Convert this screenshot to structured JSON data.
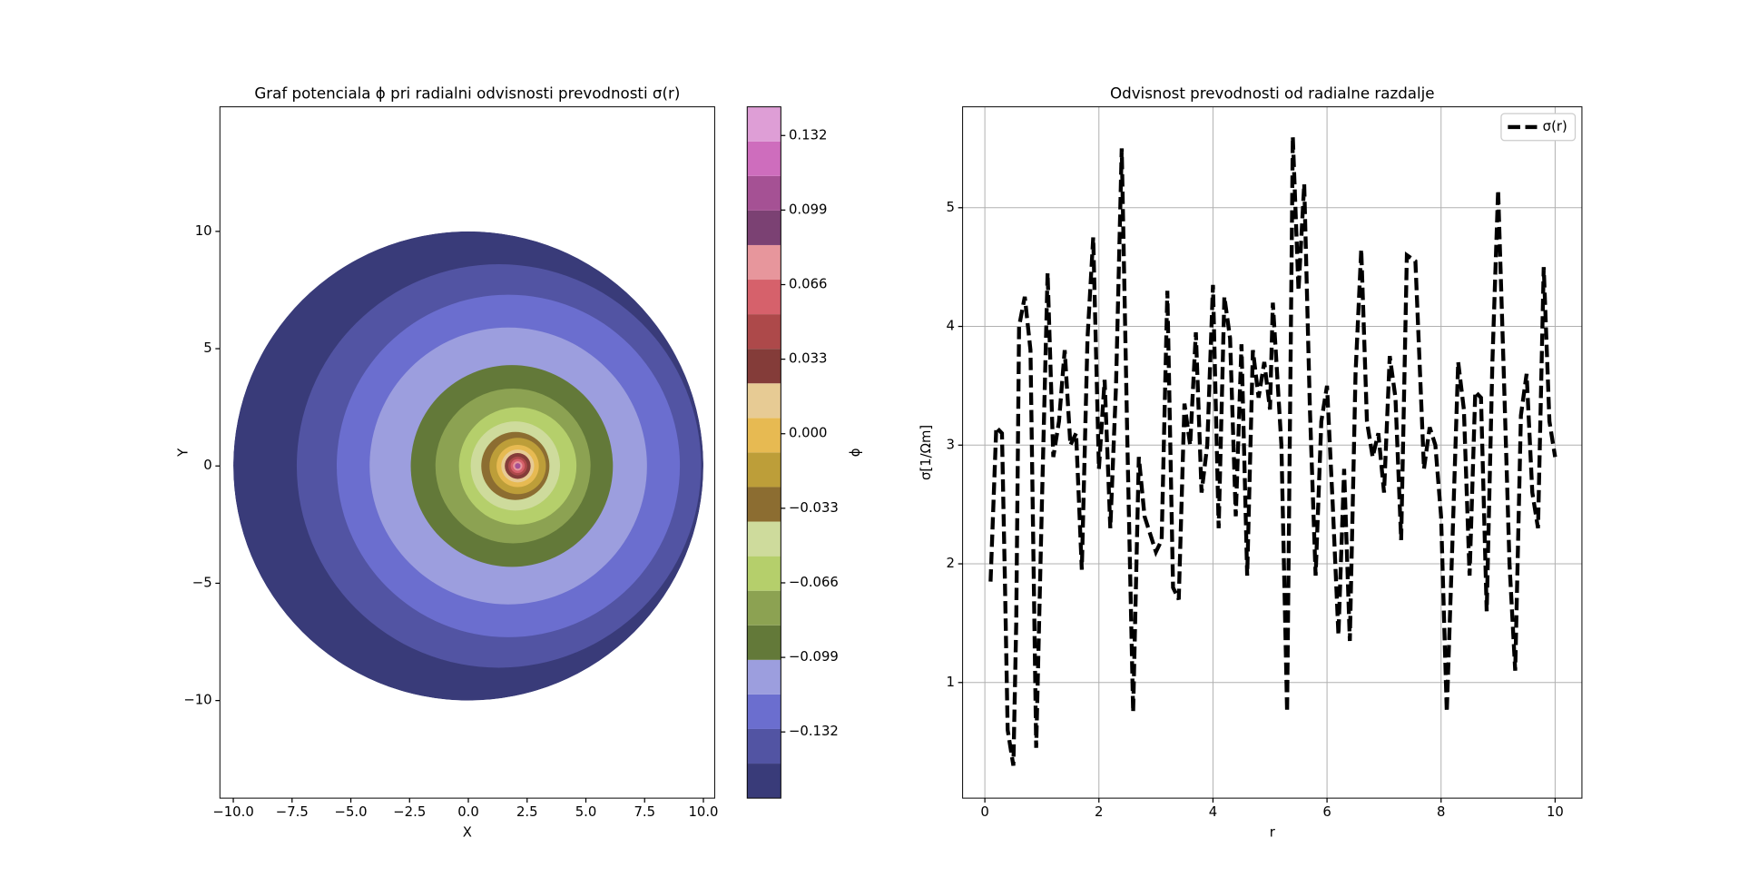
{
  "chart_data": [
    {
      "type": "contour",
      "title": "Graf potenciala ϕ pri radialni odvisnosti prevodnosti σ(r)",
      "x_label": "X",
      "y_label": "Y",
      "colorbar_label": "ϕ",
      "xlim": [
        -10.57,
        10.48
      ],
      "ylim": [
        -14.16,
        15.31
      ],
      "xticks": [
        {
          "value": -10,
          "label": "−10.0"
        },
        {
          "value": -7.5,
          "label": "−7.5"
        },
        {
          "value": -5,
          "label": "−5.0"
        },
        {
          "value": -2.5,
          "label": "−2.5"
        },
        {
          "value": 0,
          "label": "0.0"
        },
        {
          "value": 2.5,
          "label": "2.5"
        },
        {
          "value": 5,
          "label": "5.0"
        },
        {
          "value": 7.5,
          "label": "7.5"
        },
        {
          "value": 10,
          "label": "10.0"
        }
      ],
      "yticks": [
        {
          "value": -10,
          "label": "−10"
        },
        {
          "value": -5,
          "label": "−5"
        },
        0,
        5,
        10
      ],
      "domain_radius": 10,
      "levels": [
        -0.1613,
        -0.146,
        -0.1307,
        -0.1154,
        -0.1001,
        -0.0848,
        -0.0695,
        -0.0542,
        -0.0389,
        -0.0236,
        -0.0083,
        0.007,
        0.0223,
        0.0376,
        0.0529,
        0.0682,
        0.0835,
        0.0988,
        0.1141,
        0.1294,
        0.1447
      ],
      "colors": [
        "#393b79",
        "#5254a3",
        "#6b6ecf",
        "#9c9ede",
        "#637939",
        "#8ca252",
        "#b5cf6b",
        "#cedb9c",
        "#8c6d31",
        "#bd9e39",
        "#e7ba52",
        "#e7cb94",
        "#843c39",
        "#ad494a",
        "#d6616b",
        "#e7969c",
        "#7b4173",
        "#a55194",
        "#ce6dbd",
        "#de9ed6"
      ],
      "rings": [
        {
          "level": 1,
          "cx": 1.3,
          "cy": 0,
          "r": 8.6
        },
        {
          "level": 2,
          "cx": 1.7,
          "cy": 0,
          "r": 7.3
        },
        {
          "level": 3,
          "cx": 1.7,
          "cy": 0,
          "r": 5.9
        },
        {
          "level": 4,
          "cx": 1.85,
          "cy": 0,
          "r": 4.3
        },
        {
          "level": 5,
          "cx": 1.9,
          "cy": 0,
          "r": 3.3
        },
        {
          "level": 6,
          "cx": 2.1,
          "cy": 0,
          "r": 2.5
        },
        {
          "level": 7,
          "cx": 2.0,
          "cy": 0,
          "r": 1.9
        },
        {
          "level": 8,
          "cx": 2.0,
          "cy": 0,
          "r": 1.45
        },
        {
          "level": 9,
          "cx": 2.1,
          "cy": 0,
          "r": 1.2
        },
        {
          "level": 10,
          "cx": 2.1,
          "cy": 0,
          "r": 0.9
        },
        {
          "level": 11,
          "cx": 2.1,
          "cy": 0,
          "r": 0.7
        },
        {
          "level": 12,
          "cx": 2.1,
          "cy": 0,
          "r": 0.55
        },
        {
          "level": 13,
          "cx": 2.1,
          "cy": 0,
          "r": 0.4
        },
        {
          "level": 14,
          "cx": 2.1,
          "cy": 0,
          "r": 0.3
        },
        {
          "level": 15,
          "cx": 2.1,
          "cy": 0,
          "r": 0.2
        },
        {
          "level": 17,
          "cx": 2.1,
          "cy": 0,
          "r": 0.12
        }
      ],
      "colorbar_ticks": [
        {
          "value": -0.132,
          "label": "−0.132"
        },
        {
          "value": -0.099,
          "label": "−0.099"
        },
        {
          "value": -0.066,
          "label": "−0.066"
        },
        {
          "value": -0.033,
          "label": "−0.033"
        },
        {
          "value": 0,
          "label": "0.000"
        },
        0.033,
        0.066,
        0.099,
        0.132
      ]
    },
    {
      "type": "line",
      "title": "Odvisnost prevodnosti od radialne razdalje",
      "x_label": "r",
      "y_label": "σ[1/Ωm]",
      "xlim": [
        -0.39,
        10.47
      ],
      "ylim": [
        0.026,
        5.85
      ],
      "xticks": [
        0,
        2,
        4,
        6,
        8,
        10
      ],
      "yticks": [
        1,
        2,
        3,
        4,
        5
      ],
      "grid": true,
      "legend": "upper right",
      "x": [
        0.1,
        0.2,
        0.3,
        0.35,
        0.4,
        0.5,
        0.55,
        0.6,
        0.7,
        0.8,
        0.9,
        1.0,
        1.1,
        1.2,
        1.3,
        1.4,
        1.5,
        1.6,
        1.7,
        1.8,
        1.9,
        2.0,
        2.1,
        2.2,
        2.3,
        2.4,
        2.5,
        2.6,
        2.7,
        2.8,
        3.0,
        3.1,
        3.2,
        3.3,
        3.4,
        3.5,
        3.6,
        3.7,
        3.8,
        3.9,
        4.0,
        4.1,
        4.2,
        4.3,
        4.4,
        4.5,
        4.6,
        4.7,
        4.8,
        4.9,
        5.0,
        5.05,
        5.1,
        5.2,
        5.3,
        5.4,
        5.5,
        5.6,
        5.7,
        5.8,
        5.9,
        6.0,
        6.1,
        6.2,
        6.3,
        6.4,
        6.5,
        6.6,
        6.7,
        6.8,
        6.9,
        7.0,
        7.1,
        7.2,
        7.3,
        7.4,
        7.55,
        7.7,
        7.8,
        7.9,
        8.0,
        8.1,
        8.2,
        8.3,
        8.4,
        8.5,
        8.6,
        8.7,
        8.8,
        8.9,
        9.0,
        9.1,
        9.2,
        9.3,
        9.4,
        9.5,
        9.6,
        9.7,
        9.8,
        9.9,
        10.0
      ],
      "series": [
        {
          "name": "σ(r)",
          "color": "#000000",
          "values": [
            1.85,
            3.15,
            3.1,
            1.9,
            0.6,
            0.3,
            1.5,
            4.0,
            4.25,
            3.8,
            0.45,
            2.5,
            4.45,
            2.9,
            3.2,
            3.8,
            3.0,
            3.1,
            1.95,
            3.9,
            4.75,
            2.8,
            3.55,
            2.3,
            3.5,
            5.5,
            3.0,
            0.75,
            2.9,
            2.4,
            2.1,
            2.2,
            4.3,
            1.8,
            1.7,
            3.35,
            3.0,
            3.95,
            2.6,
            3.0,
            4.35,
            2.3,
            4.25,
            3.9,
            2.4,
            3.85,
            1.9,
            3.8,
            3.4,
            3.7,
            3.3,
            4.2,
            3.8,
            3.0,
            0.75,
            5.6,
            4.3,
            5.2,
            3.3,
            1.9,
            3.2,
            3.5,
            2.5,
            1.4,
            2.8,
            1.35,
            3.6,
            4.65,
            3.2,
            2.9,
            3.1,
            2.6,
            3.75,
            3.4,
            2.2,
            4.6,
            4.55,
            2.8,
            3.15,
            3.0,
            2.4,
            0.75,
            2.2,
            3.7,
            3.3,
            1.9,
            3.45,
            3.4,
            1.6,
            3.7,
            5.15,
            3.6,
            2.0,
            1.1,
            3.25,
            3.6,
            2.6,
            2.3,
            4.5,
            3.2,
            2.9
          ]
        }
      ]
    }
  ]
}
